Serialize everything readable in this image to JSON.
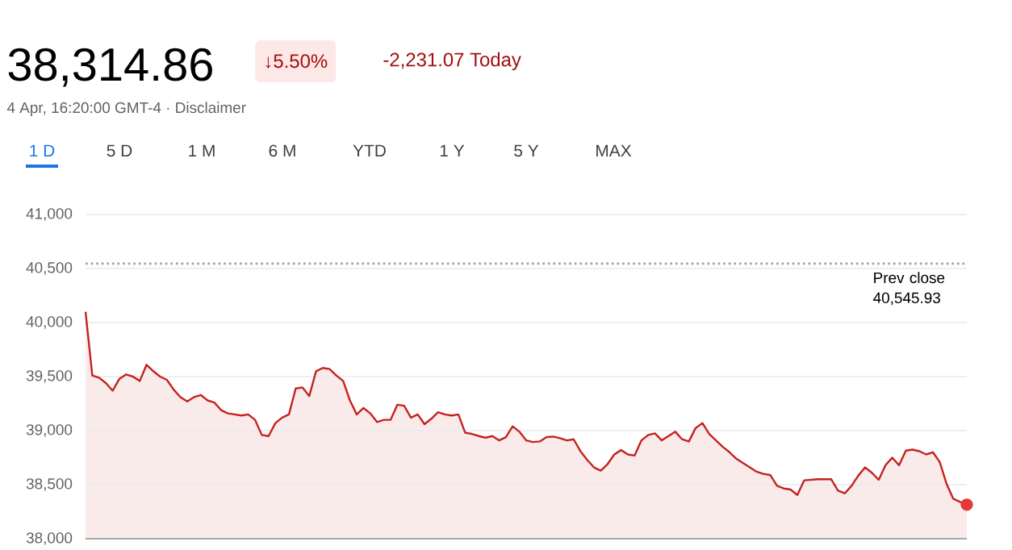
{
  "chart_data": {
    "type": "area",
    "title": "38,314.86",
    "subtitle": "4 Apr, 16:20:00 GMT-4 · Disclaimer",
    "annotations": [
      "↓5.50%",
      "-2,231.07 Today",
      "1 D",
      "5 D",
      "1 M",
      "6 M",
      "YTD",
      "1 Y",
      "5 Y",
      "MAX"
    ],
    "categories": [
      null,
      null,
      null,
      null,
      null,
      null,
      null,
      null,
      null,
      null,
      null,
      null,
      null,
      null,
      null,
      null,
      null,
      null,
      null,
      null,
      null,
      null,
      null,
      null,
      null,
      null,
      null,
      null,
      null,
      null,
      null,
      null,
      null,
      null,
      null,
      null,
      null,
      null,
      null,
      null,
      null,
      null,
      null,
      null,
      null,
      null,
      null,
      null,
      null,
      null,
      null,
      null,
      null,
      null,
      null,
      null,
      null,
      null,
      null,
      null,
      null,
      null,
      null,
      null,
      null,
      null,
      null,
      null,
      null,
      null,
      null,
      null,
      null,
      null,
      null,
      null,
      null,
      null,
      null,
      null,
      null,
      null,
      null,
      null,
      null,
      null,
      null,
      null,
      null,
      null,
      null,
      null,
      null,
      null,
      null,
      null,
      null,
      null,
      null,
      null,
      null,
      null,
      null,
      null,
      null,
      null,
      null,
      null,
      null,
      null,
      null,
      null,
      null,
      null,
      null,
      null,
      null,
      null,
      null,
      null,
      null,
      null,
      null,
      null,
      null,
      null,
      null,
      null,
      null,
      null,
      null
    ],
    "ylim": [
      38000,
      41000
    ],
    "yticks": [
      {
        "value": 38000,
        "label": "38,000"
      },
      {
        "value": 38500,
        "label": "38,500"
      },
      {
        "value": 39000,
        "label": "39,000"
      },
      {
        "value": 39500,
        "label": "39,500"
      },
      {
        "value": 40000,
        "label": "40,000"
      },
      {
        "value": 40500,
        "label": "40,500"
      },
      {
        "value": 41000,
        "label": "41,000"
      }
    ],
    "tick_labels": "y",
    "grid": "y",
    "ref_lines": [
      {
        "axis": "y",
        "value": 40545.93,
        "label": "Prev close 40,545.93",
        "color": "#9aa0a6",
        "line_style": "dotted"
      }
    ],
    "series": [
      {
        "color": "#c5221f",
        "values": [
          40100,
          39510,
          39490,
          39440,
          39370,
          39480,
          39520,
          39500,
          39460,
          39610,
          39550,
          39500,
          39470,
          39380,
          39310,
          39270,
          39310,
          39330,
          39280,
          39260,
          39190,
          39160,
          39150,
          39140,
          39150,
          39100,
          38960,
          38950,
          39070,
          39120,
          39150,
          39390,
          39400,
          39320,
          39550,
          39580,
          39570,
          39510,
          39460,
          39280,
          39150,
          39210,
          39160,
          39080,
          39100,
          39100,
          39240,
          39230,
          39120,
          39150,
          39060,
          39110,
          39170,
          39150,
          39140,
          39150,
          38980,
          38970,
          38950,
          38935,
          38950,
          38910,
          38940,
          39040,
          38990,
          38910,
          38895,
          38900,
          38940,
          38945,
          38930,
          38910,
          38920,
          38810,
          38730,
          38660,
          38630,
          38690,
          38780,
          38820,
          38780,
          38770,
          38910,
          38960,
          38975,
          38910,
          38950,
          38990,
          38920,
          38900,
          39025,
          39070,
          38970,
          38910,
          38850,
          38800,
          38740,
          38700,
          38660,
          38620,
          38600,
          38590,
          38490,
          38465,
          38455,
          38405,
          38540,
          38545,
          38550,
          38550,
          38550,
          38445,
          38420,
          38490,
          38585,
          38660,
          38610,
          38545,
          38680,
          38750,
          38680,
          38815,
          38825,
          38810,
          38780,
          38800,
          38710,
          38510,
          38370,
          38340,
          38314.86
        ]
      }
    ]
  }
}
